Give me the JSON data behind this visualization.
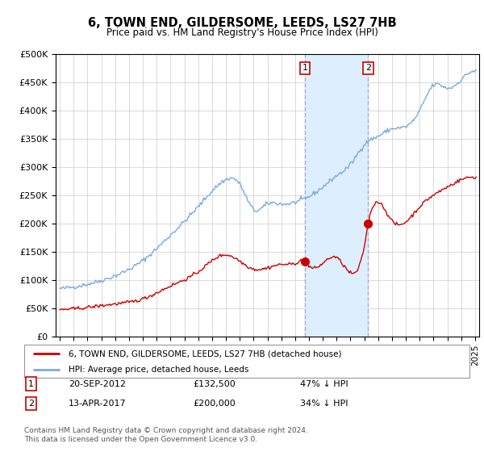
{
  "title": "6, TOWN END, GILDERSOME, LEEDS, LS27 7HB",
  "subtitle": "Price paid vs. HM Land Registry's House Price Index (HPI)",
  "ylabel_ticks": [
    "£0",
    "£50K",
    "£100K",
    "£150K",
    "£200K",
    "£250K",
    "£300K",
    "£350K",
    "£400K",
    "£450K",
    "£500K"
  ],
  "ytick_values": [
    0,
    50000,
    100000,
    150000,
    200000,
    250000,
    300000,
    350000,
    400000,
    450000,
    500000
  ],
  "ylim": [
    0,
    500000
  ],
  "xlim_start": 1994.7,
  "xlim_end": 2025.3,
  "marker1_x": 2012.72,
  "marker1_y": 132500,
  "marker2_x": 2017.28,
  "marker2_y": 200000,
  "shade_x1": 2012.72,
  "shade_x2": 2017.28,
  "red_color": "#cc0000",
  "blue_color": "#7aabdb",
  "shade_color": "#ddeeff",
  "dashed_color": "#aaaacc",
  "legend_label1": "6, TOWN END, GILDERSOME, LEEDS, LS27 7HB (detached house)",
  "legend_label2": "HPI: Average price, detached house, Leeds",
  "marker1_date": "20-SEP-2012",
  "marker1_price": "£132,500",
  "marker1_hpi": "47% ↓ HPI",
  "marker2_date": "13-APR-2017",
  "marker2_price": "£200,000",
  "marker2_hpi": "34% ↓ HPI",
  "footer": "Contains HM Land Registry data © Crown copyright and database right 2024.\nThis data is licensed under the Open Government Licence v3.0."
}
